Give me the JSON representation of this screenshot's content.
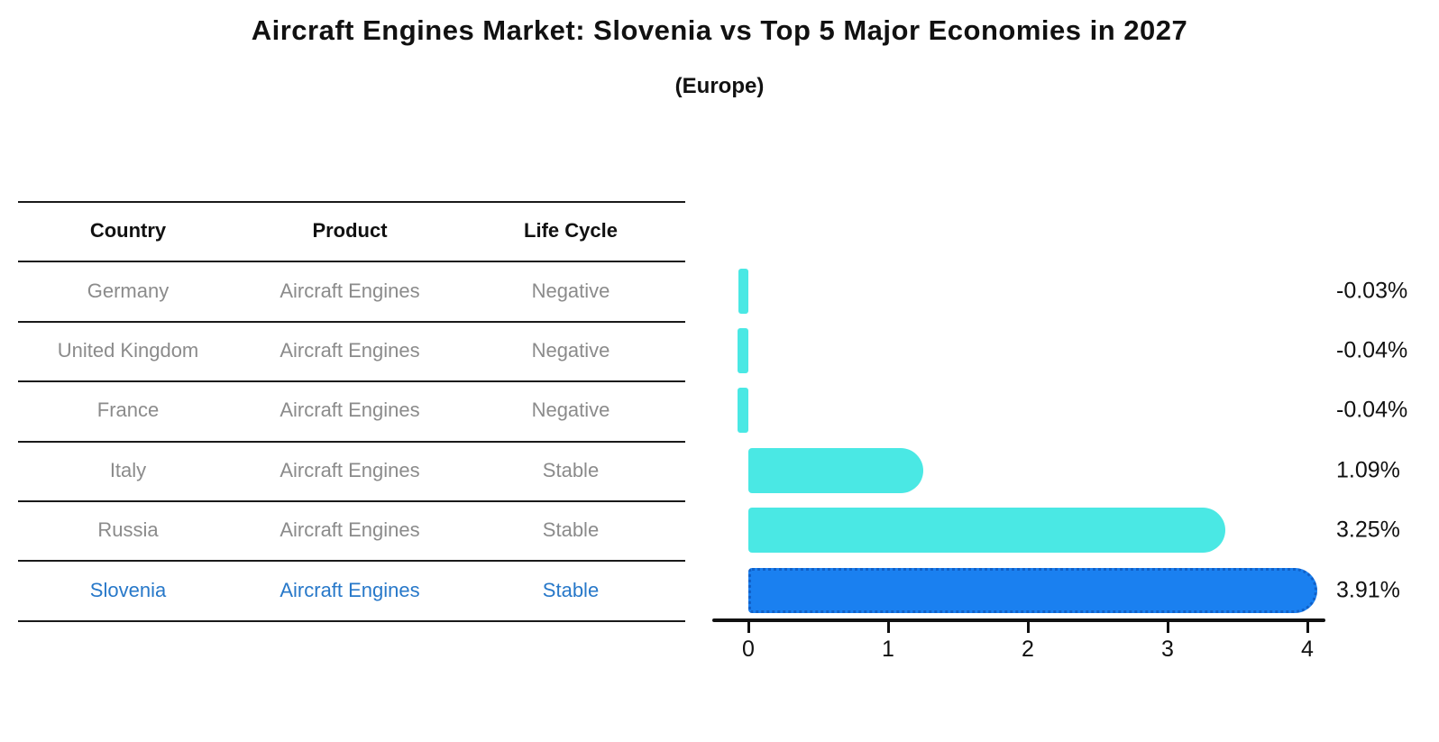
{
  "header": {
    "title": "Aircraft Engines Market: Slovenia vs Top 5 Major Economies in 2027",
    "subtitle": "(Europe)"
  },
  "table": {
    "headers": [
      "Country",
      "Product",
      "Life Cycle"
    ],
    "rows": [
      {
        "country": "Germany",
        "product": "Aircraft Engines",
        "life_cycle": "Negative",
        "highlight": false
      },
      {
        "country": "United Kingdom",
        "product": "Aircraft Engines",
        "life_cycle": "Negative",
        "highlight": false
      },
      {
        "country": "France",
        "product": "Aircraft Engines",
        "life_cycle": "Negative",
        "highlight": false
      },
      {
        "country": "Italy",
        "product": "Aircraft Engines",
        "life_cycle": "Stable",
        "highlight": false
      },
      {
        "country": "Russia",
        "product": "Aircraft Engines",
        "life_cycle": "Stable",
        "highlight": false
      },
      {
        "country": "Slovenia",
        "product": "Aircraft Engines",
        "life_cycle": "Stable",
        "highlight": true
      }
    ]
  },
  "chart_data": {
    "type": "bar",
    "orientation": "horizontal",
    "title": "Aircraft Engines Market: Slovenia vs Top 5 Major Economies in 2027 (Europe)",
    "categories": [
      "Germany",
      "United Kingdom",
      "France",
      "Italy",
      "Russia",
      "Slovenia"
    ],
    "values": [
      -0.03,
      -0.04,
      -0.04,
      1.09,
      3.25,
      3.91
    ],
    "value_labels": [
      "-0.03%",
      "-0.04%",
      "-0.04%",
      "1.09%",
      "3.25%",
      "3.91%"
    ],
    "highlight_index": 5,
    "xticks": [
      0,
      1,
      2,
      3,
      4
    ],
    "xlim": [
      0,
      4
    ],
    "grid": false,
    "legend": false,
    "colors": {
      "bar": "#4ae8e4",
      "highlight_bar": "#1a80f0",
      "highlight_border": "#1060c8",
      "axis": "#111111",
      "highlight_text": "#2778c9",
      "cell_text": "#8b8b8b"
    }
  }
}
